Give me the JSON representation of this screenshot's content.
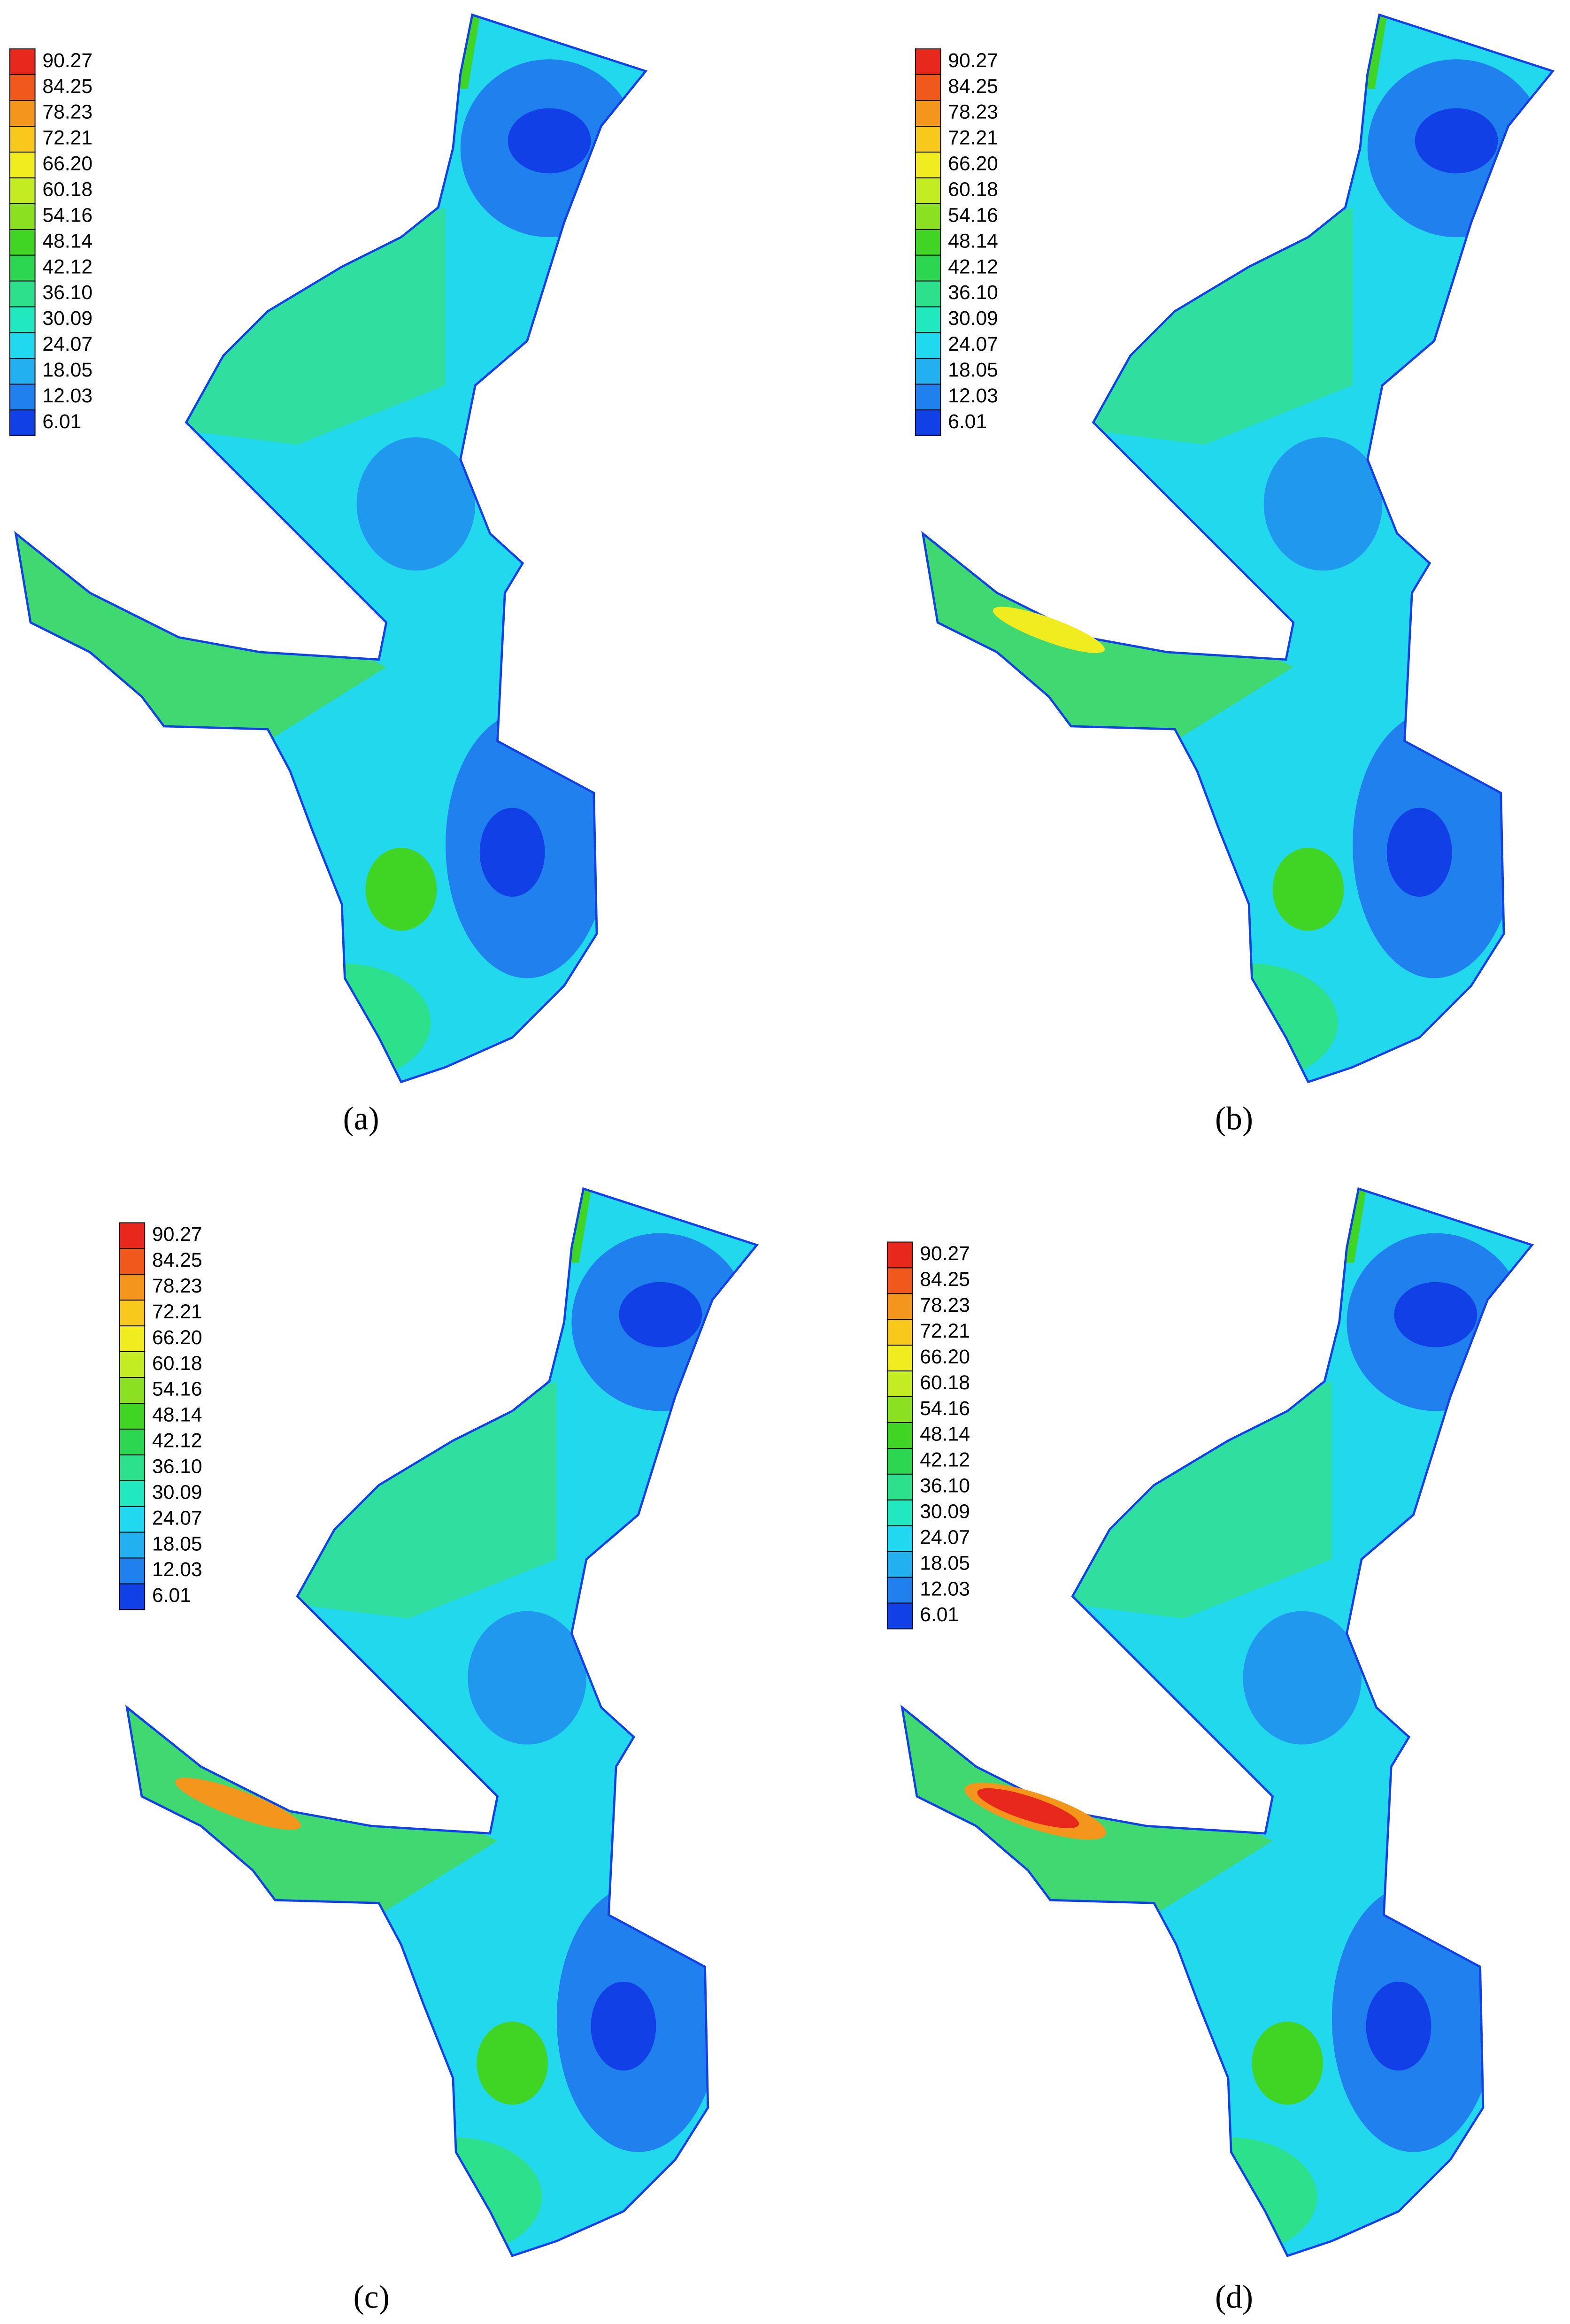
{
  "legend_colors": [
    "#e8281c",
    "#f0581c",
    "#f5961c",
    "#f8c81c",
    "#f0ec20",
    "#c4ec22",
    "#8ce022",
    "#40d424",
    "#2cd650",
    "#2ce08c",
    "#22e8c0",
    "#20d8f0",
    "#22b0f0",
    "#2080ee",
    "#1040e6"
  ],
  "panels": [
    {
      "caption": "(a)",
      "legend": [
        "90.27",
        "84.25",
        "78.23",
        "72.21",
        "66.20",
        "60.18",
        "54.16",
        "48.14",
        "42.12",
        "36.10",
        "30.09",
        "24.07",
        "18.05",
        "12.03",
        "6.01"
      ]
    },
    {
      "caption": "(b)",
      "legend": [
        "90.27",
        "84.25",
        "78.23",
        "72.21",
        "66.20",
        "60.18",
        "54.16",
        "48.14",
        "42.12",
        "36.10",
        "30.09",
        "24.07",
        "18.05",
        "12.03",
        "6.01"
      ]
    },
    {
      "caption": "(c)",
      "legend": [
        "90.27",
        "84.25",
        "78.23",
        "72.21",
        "66.20",
        "60.18",
        "54.16",
        "48.14",
        "42.12",
        "36.10",
        "30.09",
        "24.07",
        "18.05",
        "12.03",
        "6.01"
      ]
    },
    {
      "caption": "(d)",
      "legend": [
        "90.27",
        "84.25",
        "78.23",
        "72.21",
        "66.20",
        "60.18",
        "54.16",
        "48.14",
        "42.12",
        "36.10",
        "30.09",
        "24.07",
        "18.05",
        "12.03",
        "6.01"
      ]
    }
  ]
}
